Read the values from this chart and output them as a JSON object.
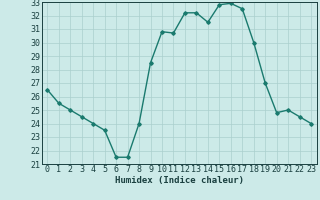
{
  "x": [
    0,
    1,
    2,
    3,
    4,
    5,
    6,
    7,
    8,
    9,
    10,
    11,
    12,
    13,
    14,
    15,
    16,
    17,
    18,
    19,
    20,
    21,
    22,
    23
  ],
  "y": [
    26.5,
    25.5,
    25.0,
    24.5,
    24.0,
    23.5,
    21.5,
    21.5,
    24.0,
    28.5,
    30.8,
    30.7,
    32.2,
    32.2,
    31.5,
    32.8,
    32.9,
    32.5,
    30.0,
    27.0,
    24.8,
    25.0,
    24.5,
    24.0
  ],
  "line_color": "#1a7a6e",
  "marker": "D",
  "marker_size": 1.8,
  "linewidth": 1.0,
  "bg_color": "#cceae8",
  "grid_color": "#aacfcd",
  "xlabel": "Humidex (Indice chaleur)",
  "xlim": [
    -0.5,
    23.5
  ],
  "ylim": [
    21,
    33
  ],
  "yticks": [
    21,
    22,
    23,
    24,
    25,
    26,
    27,
    28,
    29,
    30,
    31,
    32,
    33
  ],
  "xticks": [
    0,
    1,
    2,
    3,
    4,
    5,
    6,
    7,
    8,
    9,
    10,
    11,
    12,
    13,
    14,
    15,
    16,
    17,
    18,
    19,
    20,
    21,
    22,
    23
  ],
  "xlabel_fontsize": 6.5,
  "tick_fontsize": 6.0,
  "tick_color": "#1a4040",
  "spine_color": "#1a4040"
}
